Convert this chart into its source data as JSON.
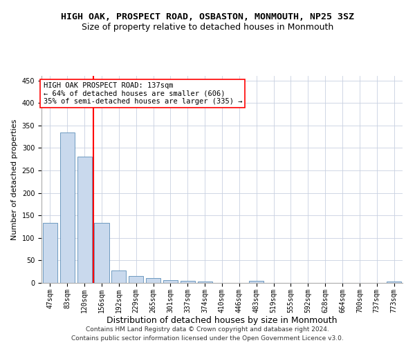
{
  "title": "HIGH OAK, PROSPECT ROAD, OSBASTON, MONMOUTH, NP25 3SZ",
  "subtitle": "Size of property relative to detached houses in Monmouth",
  "xlabel": "Distribution of detached houses by size in Monmouth",
  "ylabel": "Number of detached properties",
  "categories": [
    "47sqm",
    "83sqm",
    "120sqm",
    "156sqm",
    "192sqm",
    "229sqm",
    "265sqm",
    "301sqm",
    "337sqm",
    "374sqm",
    "410sqm",
    "446sqm",
    "483sqm",
    "519sqm",
    "555sqm",
    "592sqm",
    "628sqm",
    "664sqm",
    "700sqm",
    "737sqm",
    "773sqm"
  ],
  "values": [
    134,
    335,
    281,
    133,
    27,
    15,
    10,
    6,
    5,
    3,
    0,
    0,
    4,
    0,
    0,
    0,
    0,
    0,
    0,
    0,
    3
  ],
  "bar_color": "#c9d9ed",
  "bar_edge_color": "#5b8db8",
  "grid_color": "#c8d0e0",
  "background_color": "#ffffff",
  "annotation_line1": "HIGH OAK PROSPECT ROAD: 137sqm",
  "annotation_line2": "← 64% of detached houses are smaller (606)",
  "annotation_line3": "35% of semi-detached houses are larger (335) →",
  "vline_x_index": 2.5,
  "ylim": [
    0,
    460
  ],
  "yticks": [
    0,
    50,
    100,
    150,
    200,
    250,
    300,
    350,
    400,
    450
  ],
  "footer_line1": "Contains HM Land Registry data © Crown copyright and database right 2024.",
  "footer_line2": "Contains public sector information licensed under the Open Government Licence v3.0.",
  "title_fontsize": 9.5,
  "subtitle_fontsize": 9,
  "xlabel_fontsize": 9,
  "ylabel_fontsize": 8,
  "tick_fontsize": 7,
  "annotation_fontsize": 7.5,
  "footer_fontsize": 6.5
}
